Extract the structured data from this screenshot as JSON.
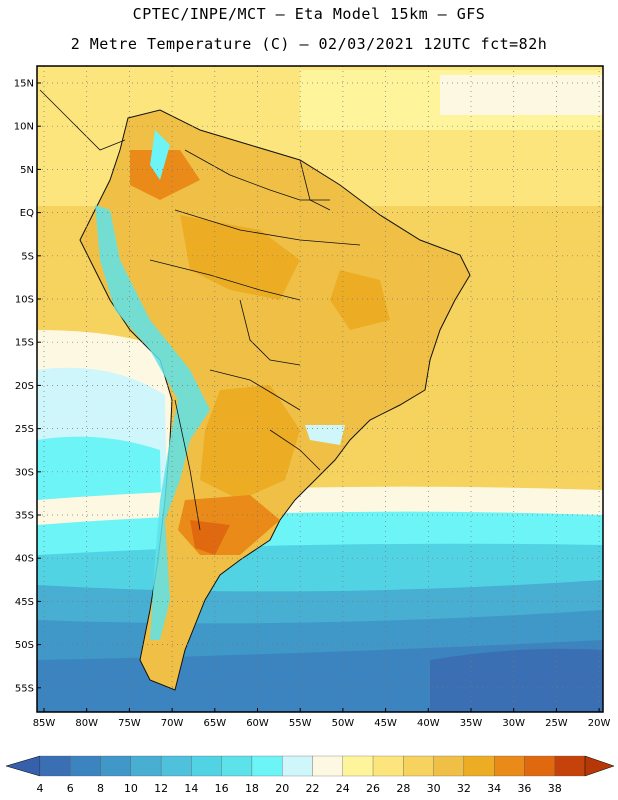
{
  "title_line1": "CPTEC/INPE/MCT –  Eta Model 15km – GFS",
  "title_line2": "2 Metre Temperature (C) – 02/03/2021 12UTC fct=82h",
  "lat_labels": [
    "15N",
    "10N",
    "5N",
    "EQ",
    "5S",
    "10S",
    "15S",
    "20S",
    "25S",
    "30S",
    "35S",
    "40S",
    "45S",
    "50S",
    "55S"
  ],
  "lon_labels": [
    "85W",
    "80W",
    "75W",
    "70W",
    "65W",
    "60W",
    "55W",
    "50W",
    "45W",
    "40W",
    "35W",
    "30W",
    "25W",
    "20W"
  ],
  "colorbar": {
    "ticks": [
      "4",
      "6",
      "8",
      "10",
      "12",
      "14",
      "16",
      "18",
      "20",
      "22",
      "24",
      "26",
      "28",
      "30",
      "32",
      "34",
      "36",
      "38"
    ],
    "colors": [
      "#3b6fb4",
      "#3c84c0",
      "#3f98c8",
      "#48aed2",
      "#4fc1dc",
      "#52d3e4",
      "#5ee2ea",
      "#6cf4f6",
      "#cff6fb",
      "#fdf8e1",
      "#fdf49c",
      "#fbe57c",
      "#f6d25e",
      "#f0c046",
      "#ecad24",
      "#e98a19",
      "#e06910",
      "#c5430a"
    ],
    "left_arrow_color": "#3760ac",
    "right_arrow_color": "#b53806"
  }
}
